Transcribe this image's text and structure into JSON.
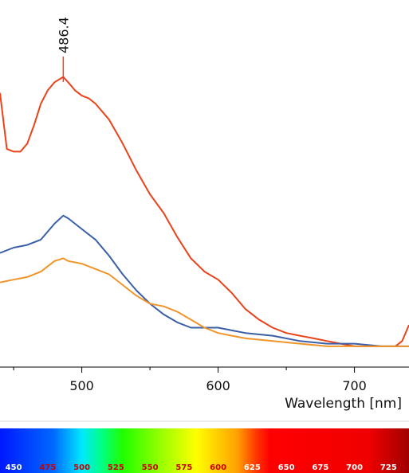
{
  "chart_data": {
    "type": "line",
    "title": "",
    "xlabel": "Wavelength [nm]",
    "ylabel": "",
    "xlim": [
      440,
      740
    ],
    "ylim": [
      0,
      1
    ],
    "x_ticks": [
      "500",
      "600",
      "700"
    ],
    "grid": false,
    "annotations": [
      {
        "text": "486.4",
        "x": 486.4
      }
    ],
    "series": [
      {
        "color": "#e8431a",
        "x": [
          440,
          445,
          450,
          455,
          460,
          465,
          470,
          475,
          480,
          486.4,
          490,
          495,
          500,
          505,
          510,
          520,
          530,
          540,
          550,
          560,
          570,
          580,
          590,
          600,
          610,
          620,
          630,
          640,
          650,
          660,
          670,
          680,
          690,
          700,
          710,
          720,
          730,
          735,
          740
        ],
        "y": [
          0.98,
          0.77,
          0.76,
          0.76,
          0.79,
          0.86,
          0.94,
          0.99,
          1.02,
          1.04,
          1.02,
          0.99,
          0.97,
          0.96,
          0.94,
          0.88,
          0.79,
          0.69,
          0.6,
          0.53,
          0.44,
          0.36,
          0.31,
          0.28,
          0.23,
          0.17,
          0.13,
          0.1,
          0.08,
          0.07,
          0.06,
          0.05,
          0.04,
          0.03,
          0.03,
          0.03,
          0.03,
          0.05,
          0.11
        ]
      },
      {
        "color": "#3b5fa6",
        "x": [
          440,
          450,
          460,
          470,
          480,
          486.4,
          490,
          500,
          510,
          520,
          530,
          540,
          550,
          560,
          570,
          580,
          590,
          600,
          610,
          620,
          640,
          660,
          680,
          700,
          720,
          740
        ],
        "y": [
          0.38,
          0.4,
          0.41,
          0.43,
          0.49,
          0.52,
          0.51,
          0.47,
          0.43,
          0.37,
          0.3,
          0.24,
          0.19,
          0.15,
          0.12,
          0.1,
          0.1,
          0.1,
          0.09,
          0.08,
          0.07,
          0.05,
          0.04,
          0.04,
          0.03,
          0.03
        ]
      },
      {
        "color": "#f0952a",
        "x": [
          440,
          450,
          460,
          470,
          480,
          486.4,
          490,
          500,
          510,
          520,
          530,
          540,
          550,
          560,
          570,
          580,
          590,
          600,
          610,
          620,
          640,
          660,
          680,
          700,
          720,
          740
        ],
        "y": [
          0.27,
          0.28,
          0.29,
          0.31,
          0.35,
          0.36,
          0.35,
          0.34,
          0.32,
          0.3,
          0.26,
          0.22,
          0.19,
          0.18,
          0.16,
          0.13,
          0.1,
          0.08,
          0.07,
          0.06,
          0.05,
          0.04,
          0.03,
          0.03,
          0.03,
          0.03
        ]
      }
    ]
  },
  "colorbar": {
    "labels": [
      "450",
      "475",
      "500",
      "525",
      "550",
      "575",
      "600",
      "625",
      "650",
      "675",
      "700",
      "725"
    ],
    "label_colors": [
      "#ffffff",
      "#cc0000",
      "#cc0000",
      "#cc0000",
      "#cc0000",
      "#cc0000",
      "#cc0000",
      "#ffffff",
      "#ffffff",
      "#ffffff",
      "#ffffff",
      "#ffffff"
    ]
  }
}
